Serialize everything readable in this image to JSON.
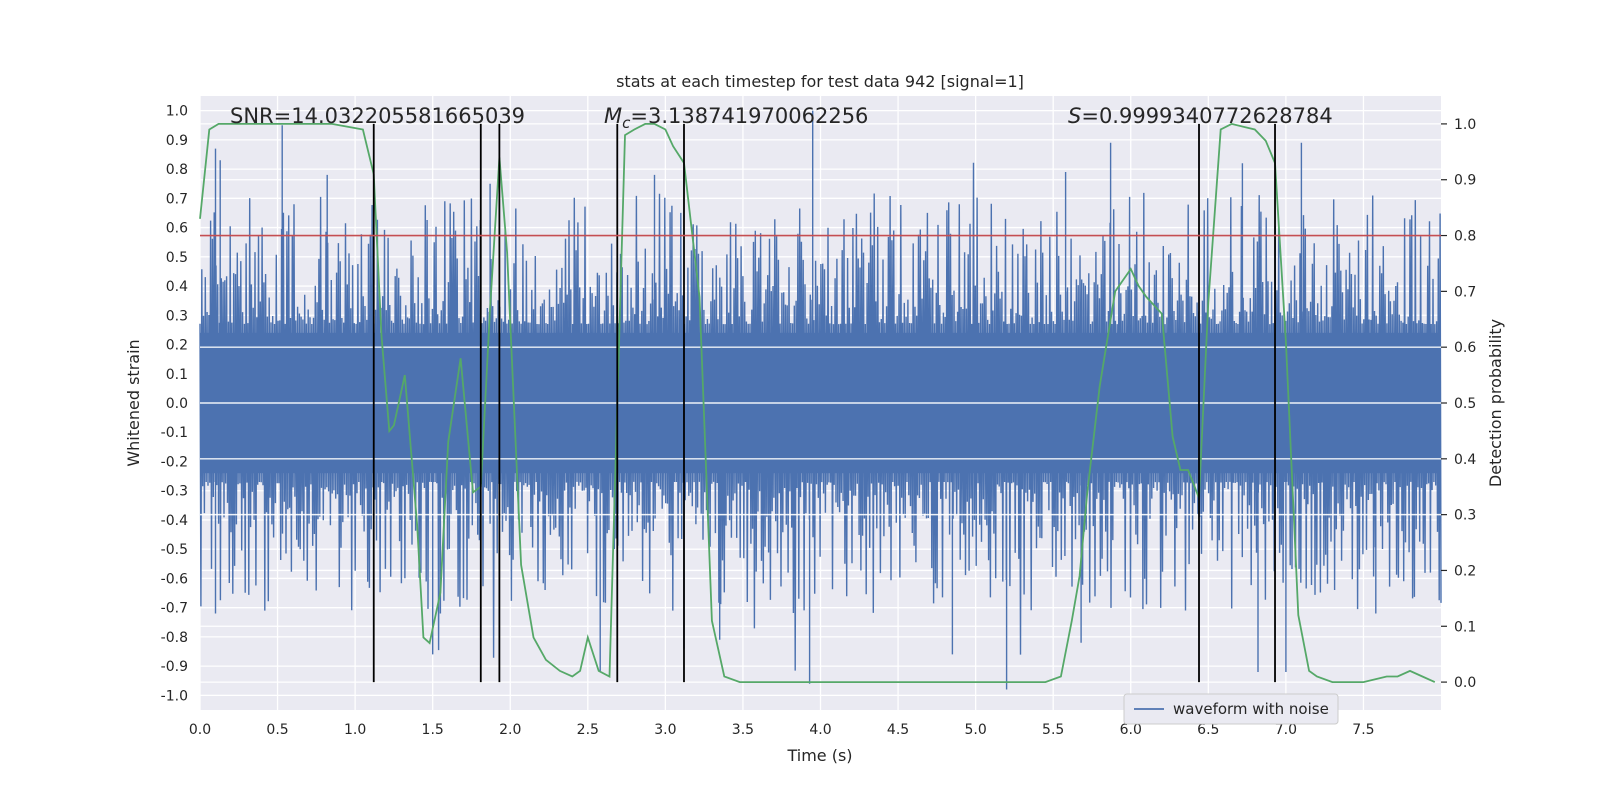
{
  "chart_data": {
    "type": "line",
    "title": "stats at each timestep for test data 942 [signal=1]",
    "xlabel": "Time (s)",
    "ylabel": "Whitened strain",
    "y2label": "Detection probability",
    "xlim": [
      0.0,
      8.0
    ],
    "ylim": [
      -1.05,
      1.05
    ],
    "y2lim": [
      -0.05,
      1.05
    ],
    "x_ticks": [
      "0.0",
      "0.5",
      "1.0",
      "1.5",
      "2.0",
      "2.5",
      "3.0",
      "3.5",
      "4.0",
      "4.5",
      "5.0",
      "5.5",
      "6.0",
      "6.5",
      "7.0",
      "7.5"
    ],
    "y_ticks": [
      "1.0",
      "0.9",
      "0.8",
      "0.7",
      "0.6",
      "0.5",
      "0.4",
      "0.3",
      "0.2",
      "0.1",
      "0.0",
      "-0.1",
      "-0.2",
      "-0.3",
      "-0.4",
      "-0.5",
      "-0.6",
      "-0.7",
      "-0.8",
      "-0.9",
      "-1.0"
    ],
    "y2_ticks": [
      "1.0",
      "0.9",
      "0.8",
      "0.7",
      "0.6",
      "0.5",
      "0.4",
      "0.3",
      "0.2",
      "0.1",
      "0.0"
    ],
    "annotations": {
      "snr": "SNR=14.032205581665039",
      "mc_symbol": "M",
      "mc_sub": "c",
      "mc_value": "=3.138741970062256",
      "s_symbol": "S",
      "s_value": "=0.9999340772628784"
    },
    "legend": {
      "label": "waveform with noise",
      "placement": "lower-right"
    },
    "threshold": {
      "y2": 0.8,
      "color": "#c44e52"
    },
    "event_lines_x": [
      1.12,
      1.81,
      1.93,
      2.69,
      3.12,
      6.44,
      6.93
    ],
    "waveform": {
      "name": "waveform with noise",
      "color": "#4c72b0",
      "seed": 942,
      "samples": 1400,
      "base_amplitude": 0.27,
      "spikes": [
        {
          "x": 0.1,
          "y": 0.87
        },
        {
          "x": 0.13,
          "y": 0.83
        },
        {
          "x": 0.53,
          "y": 0.95
        },
        {
          "x": 0.82,
          "y": 0.78
        },
        {
          "x": 1.87,
          "y": 0.75
        },
        {
          "x": 2.93,
          "y": 0.78
        },
        {
          "x": 3.95,
          "y": 1.0
        },
        {
          "x": 5.58,
          "y": 0.79
        },
        {
          "x": 5.87,
          "y": 0.89
        },
        {
          "x": 6.72,
          "y": 0.82
        },
        {
          "x": 7.1,
          "y": 0.89
        },
        {
          "x": 0.1,
          "y": -0.72
        },
        {
          "x": 1.5,
          "y": -0.86
        },
        {
          "x": 2.58,
          "y": -0.92
        },
        {
          "x": 3.12,
          "y": -0.84
        },
        {
          "x": 3.93,
          "y": -0.96
        },
        {
          "x": 4.85,
          "y": -0.86
        },
        {
          "x": 5.2,
          "y": -0.98
        },
        {
          "x": 5.68,
          "y": -0.82
        },
        {
          "x": 6.82,
          "y": -0.92
        },
        {
          "x": 7.0,
          "y": -0.92
        },
        {
          "x": 7.58,
          "y": -0.72
        },
        {
          "x": 1.55,
          "y": -0.72
        },
        {
          "x": 3.35,
          "y": -0.81
        }
      ]
    },
    "probability": {
      "name": "Detection probability",
      "color": "#55a868",
      "x": [
        0.0,
        0.06,
        0.12,
        0.3,
        0.6,
        0.85,
        1.05,
        1.12,
        1.17,
        1.22,
        1.25,
        1.32,
        1.4,
        1.44,
        1.48,
        1.55,
        1.6,
        1.68,
        1.76,
        1.81,
        1.87,
        1.93,
        1.98,
        2.07,
        2.15,
        2.23,
        2.32,
        2.4,
        2.45,
        2.5,
        2.57,
        2.64,
        2.69,
        2.74,
        2.8,
        2.87,
        2.93,
        3.0,
        3.05,
        3.12,
        3.22,
        3.3,
        3.38,
        3.48,
        3.7,
        4.2,
        4.5,
        5.0,
        5.45,
        5.55,
        5.62,
        5.67,
        5.72,
        5.8,
        5.9,
        6.0,
        6.05,
        6.1,
        6.2,
        6.27,
        6.32,
        6.37,
        6.44,
        6.5,
        6.58,
        6.65,
        6.8,
        6.87,
        6.93,
        7.0,
        7.08,
        7.15,
        7.2,
        7.3,
        7.5,
        7.65,
        7.72,
        7.8,
        7.88,
        7.96
      ],
      "y": [
        0.83,
        0.99,
        1.0,
        1.0,
        1.0,
        1.0,
        0.99,
        0.91,
        0.62,
        0.45,
        0.46,
        0.55,
        0.28,
        0.08,
        0.07,
        0.16,
        0.43,
        0.58,
        0.34,
        0.35,
        0.67,
        0.94,
        0.77,
        0.21,
        0.08,
        0.04,
        0.02,
        0.01,
        0.02,
        0.08,
        0.02,
        0.01,
        0.5,
        0.98,
        0.99,
        1.0,
        1.0,
        0.99,
        0.96,
        0.93,
        0.69,
        0.11,
        0.01,
        0.0,
        0.0,
        0.0,
        0.0,
        0.0,
        0.0,
        0.01,
        0.11,
        0.19,
        0.34,
        0.53,
        0.7,
        0.74,
        0.71,
        0.69,
        0.66,
        0.44,
        0.38,
        0.38,
        0.33,
        0.68,
        0.99,
        1.0,
        0.99,
        0.97,
        0.93,
        0.61,
        0.12,
        0.02,
        0.01,
        0.0,
        0.0,
        0.01,
        0.01,
        0.02,
        0.01,
        0.0
      ]
    }
  }
}
